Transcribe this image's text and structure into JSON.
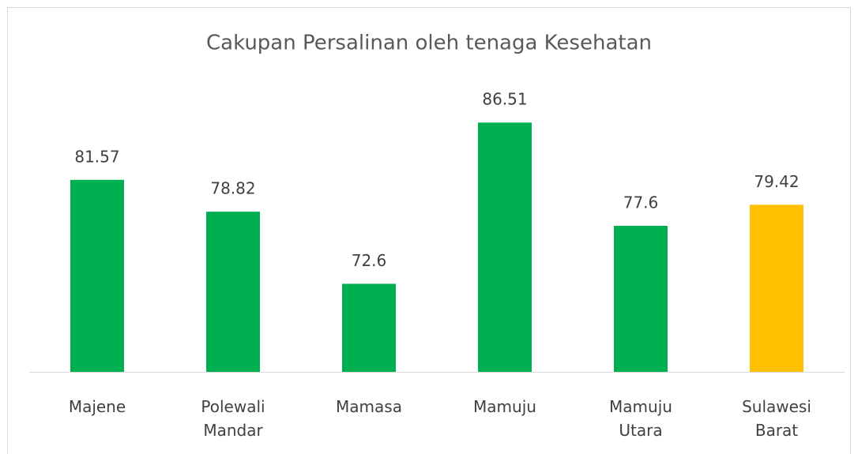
{
  "chart_data": {
    "type": "bar",
    "title": "Cakupan Persalinan oleh tenaga Kesehatan",
    "categories": [
      "Majene",
      "Polewali Mandar",
      "Mamasa",
      "Mamuju",
      "Mamuju Utara",
      "Sulawesi Barat"
    ],
    "values": [
      81.57,
      78.82,
      72.6,
      86.51,
      77.6,
      79.42
    ],
    "colors": [
      "#00b050",
      "#00b050",
      "#00b050",
      "#00b050",
      "#00b050",
      "#ffc000"
    ],
    "ylim": [
      65,
      90
    ]
  }
}
